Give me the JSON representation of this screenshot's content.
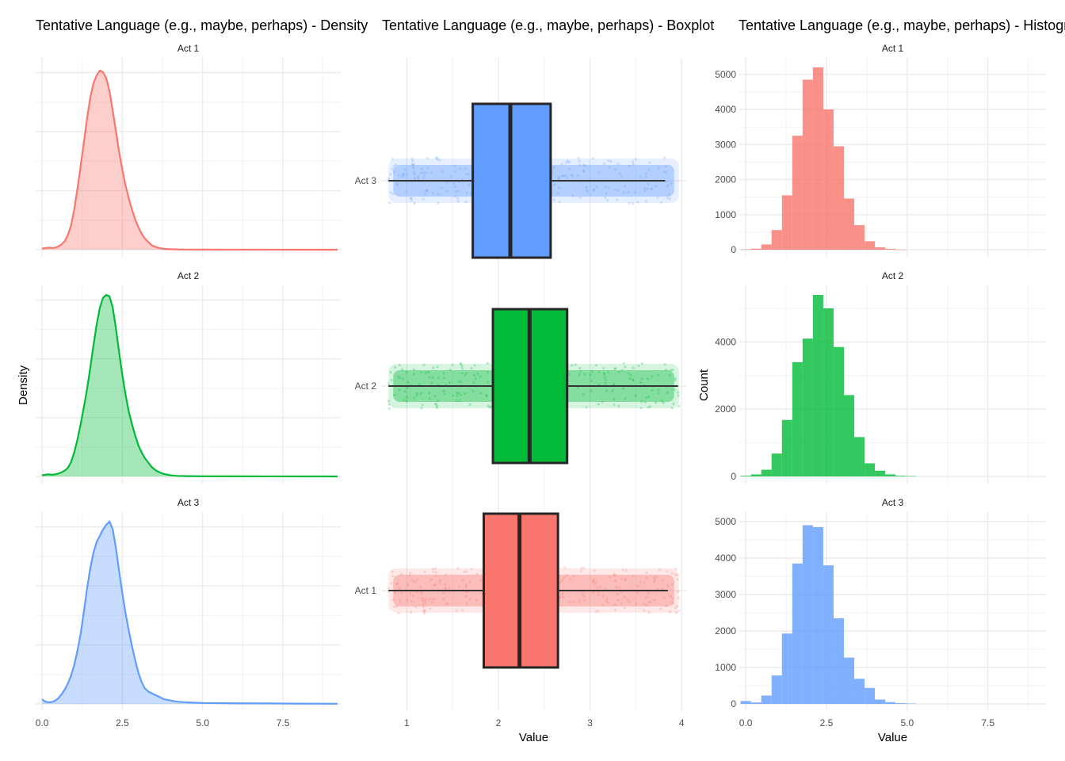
{
  "chart_data": [
    {
      "type": "area",
      "title": "Tentative Language (e.g., maybe, perhaps) - Density",
      "xlabel": "",
      "ylabel": "Density",
      "xlim": [
        -0.2,
        9.3
      ],
      "x_ticks": [
        "0.0",
        "2.5",
        "5.0",
        "7.5"
      ],
      "x_tick_values": [
        0,
        2.5,
        5,
        7.5
      ],
      "facets": [
        {
          "label": "Act 1",
          "color": "#F8766D",
          "x": [
            0,
            0.1,
            0.2,
            0.3,
            0.4,
            0.5,
            0.6,
            0.7,
            0.8,
            0.9,
            1,
            1.1,
            1.2,
            1.3,
            1.4,
            1.5,
            1.6,
            1.7,
            1.8,
            1.9,
            2,
            2.1,
            2.2,
            2.3,
            2.4,
            2.5,
            2.6,
            2.7,
            2.8,
            2.9,
            3,
            3.1,
            3.2,
            3.3,
            3.4,
            3.5,
            3.6,
            3.7,
            3.8,
            4,
            4.2,
            4.5,
            5,
            6,
            7,
            8,
            9.2
          ],
          "y": [
            0.007,
            0.01,
            0.013,
            0.011,
            0.012,
            0.02,
            0.032,
            0.052,
            0.09,
            0.15,
            0.25,
            0.38,
            0.52,
            0.67,
            0.82,
            0.95,
            1.04,
            1.09,
            1.12,
            1.11,
            1.07,
            0.99,
            0.87,
            0.74,
            0.61,
            0.5,
            0.4,
            0.32,
            0.25,
            0.19,
            0.14,
            0.1,
            0.07,
            0.05,
            0.03,
            0.02,
            0.013,
            0.008,
            0.005,
            0.003,
            0.002,
            0.001,
            0.0006,
            0.0003,
            0.0002,
            0.0001,
            0
          ],
          "ylim": [
            0,
            1.14
          ]
        },
        {
          "label": "Act 2",
          "color": "#00BA38",
          "x": [
            0,
            0.1,
            0.2,
            0.3,
            0.4,
            0.5,
            0.6,
            0.7,
            0.8,
            0.9,
            1,
            1.1,
            1.2,
            1.3,
            1.4,
            1.5,
            1.6,
            1.7,
            1.8,
            1.9,
            2,
            2.1,
            2.2,
            2.3,
            2.4,
            2.5,
            2.6,
            2.7,
            2.8,
            2.9,
            3,
            3.1,
            3.2,
            3.3,
            3.4,
            3.5,
            3.6,
            3.7,
            3.8,
            4,
            4.2,
            4.5,
            5,
            6,
            7,
            8,
            9.2
          ],
          "y": [
            0.008,
            0.012,
            0.015,
            0.012,
            0.014,
            0.02,
            0.028,
            0.04,
            0.06,
            0.1,
            0.17,
            0.26,
            0.37,
            0.49,
            0.62,
            0.77,
            0.93,
            1.08,
            1.2,
            1.27,
            1.29,
            1.28,
            1.2,
            1.05,
            0.88,
            0.72,
            0.58,
            0.46,
            0.37,
            0.29,
            0.22,
            0.17,
            0.13,
            0.1,
            0.07,
            0.05,
            0.035,
            0.025,
            0.017,
            0.008,
            0.004,
            0.002,
            0.001,
            0.0005,
            0.0003,
            0.0001,
            0
          ],
          "ylim": [
            0,
            1.29
          ]
        },
        {
          "label": "Act 3",
          "color": "#619CFF",
          "x": [
            0,
            0.1,
            0.2,
            0.3,
            0.4,
            0.5,
            0.6,
            0.7,
            0.8,
            0.9,
            1,
            1.1,
            1.2,
            1.3,
            1.4,
            1.5,
            1.6,
            1.7,
            1.8,
            1.9,
            2,
            2.1,
            2.2,
            2.3,
            2.4,
            2.5,
            2.6,
            2.7,
            2.8,
            2.9,
            3,
            3.1,
            3.2,
            3.3,
            3.4,
            3.5,
            3.6,
            3.7,
            3.8,
            4,
            4.2,
            4.5,
            5,
            6,
            7,
            8,
            9.2
          ],
          "y": [
            0.03,
            0.015,
            0.01,
            0.012,
            0.02,
            0.035,
            0.06,
            0.09,
            0.13,
            0.18,
            0.25,
            0.34,
            0.45,
            0.59,
            0.74,
            0.87,
            0.97,
            1.04,
            1.08,
            1.12,
            1.15,
            1.17,
            1.12,
            1.0,
            0.85,
            0.71,
            0.58,
            0.47,
            0.37,
            0.28,
            0.2,
            0.14,
            0.1,
            0.08,
            0.07,
            0.06,
            0.05,
            0.04,
            0.03,
            0.022,
            0.015,
            0.01,
            0.006,
            0.004,
            0.003,
            0.002,
            0.001
          ],
          "ylim": [
            0,
            1.17
          ]
        }
      ]
    },
    {
      "type": "box",
      "title": "Tentative Language (e.g., maybe, perhaps) - Boxplot",
      "xlabel": "Value",
      "ylabel": "",
      "xlim": [
        0.72,
        4.05
      ],
      "x_ticks": [
        "1",
        "2",
        "3",
        "4"
      ],
      "x_tick_values": [
        1,
        2,
        3,
        4
      ],
      "categories": [
        "Act 3",
        "Act 2",
        "Act 1"
      ],
      "boxes": [
        {
          "label": "Act 3",
          "color": "#619CFF",
          "whisker_low": 0.8,
          "q1": 1.72,
          "median": 2.13,
          "q3": 2.57,
          "whisker_high": 3.82,
          "jitter_min": 0.8,
          "jitter_max": 3.97
        },
        {
          "label": "Act 2",
          "color": "#00BA38",
          "whisker_low": 0.8,
          "q1": 1.94,
          "median": 2.34,
          "q3": 2.75,
          "whisker_high": 3.96,
          "jitter_min": 0.8,
          "jitter_max": 3.97
        },
        {
          "label": "Act 1",
          "color": "#F8766D",
          "whisker_low": 0.8,
          "q1": 1.84,
          "median": 2.23,
          "q3": 2.65,
          "whisker_high": 3.85,
          "jitter_min": 0.8,
          "jitter_max": 3.97
        }
      ]
    },
    {
      "type": "bar",
      "title": "Tentative Language (e.g., maybe, perhaps) - Histogram",
      "xlabel": "Value",
      "ylabel": "Count",
      "xlim": [
        -0.2,
        9.3
      ],
      "x_ticks": [
        "0.0",
        "2.5",
        "5.0",
        "7.5"
      ],
      "x_tick_values": [
        0,
        2.5,
        5,
        7.5
      ],
      "bin_width": 0.32,
      "facets": [
        {
          "label": "Act 1",
          "color": "#F8766D",
          "bin_centers": [
            0,
            0.32,
            0.64,
            0.96,
            1.28,
            1.6,
            1.92,
            2.24,
            2.56,
            2.88,
            3.2,
            3.52,
            3.84,
            4.16,
            4.48,
            4.8
          ],
          "counts": [
            10,
            30,
            150,
            560,
            1550,
            3250,
            4850,
            5200,
            4000,
            2950,
            1460,
            700,
            240,
            70,
            25,
            5
          ],
          "y_ticks": [
            0,
            1000,
            2000,
            3000,
            4000,
            5000
          ],
          "ylim": [
            0,
            5200
          ]
        },
        {
          "label": "Act 2",
          "color": "#00BA38",
          "bin_centers": [
            0,
            0.32,
            0.64,
            0.96,
            1.28,
            1.6,
            1.92,
            2.24,
            2.56,
            2.88,
            3.2,
            3.52,
            3.84,
            4.16,
            4.48,
            4.8,
            5.12
          ],
          "counts": [
            20,
            60,
            200,
            680,
            1680,
            3400,
            4100,
            5400,
            5000,
            3850,
            2420,
            1170,
            390,
            170,
            60,
            20,
            10
          ],
          "y_ticks": [
            0,
            2000,
            4000
          ],
          "ylim": [
            0,
            5400
          ]
        },
        {
          "label": "Act 3",
          "color": "#619CFF",
          "bin_centers": [
            0,
            0.32,
            0.64,
            0.96,
            1.28,
            1.6,
            1.92,
            2.24,
            2.56,
            2.88,
            3.2,
            3.52,
            3.84,
            4.16,
            4.48,
            4.8,
            5.12
          ],
          "counts": [
            80,
            40,
            230,
            780,
            1930,
            3850,
            4900,
            4850,
            3800,
            2350,
            1270,
            690,
            440,
            120,
            50,
            20,
            10
          ],
          "y_ticks": [
            0,
            1000,
            2000,
            3000,
            4000,
            5000
          ],
          "ylim": [
            0,
            5000
          ]
        }
      ]
    }
  ]
}
